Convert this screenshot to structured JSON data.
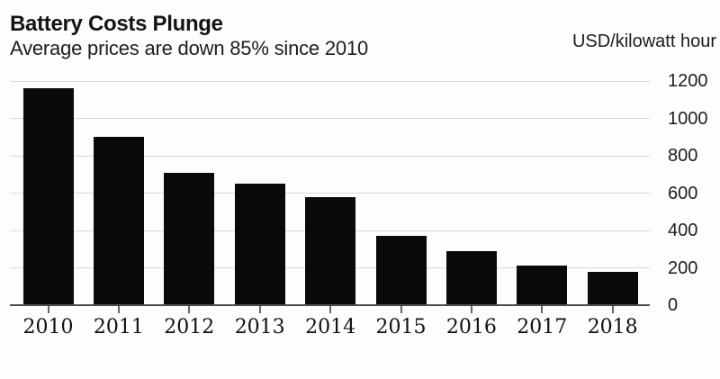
{
  "header": {
    "title": "Battery Costs Plunge",
    "subtitle": "Average prices are down 85% since 2010",
    "unit_label": "USD/kilowatt hour"
  },
  "chart_data": {
    "type": "bar",
    "title": "Battery Costs Plunge",
    "subtitle": "Average prices are down 85% since 2010",
    "ylabel": "USD/kilowatt hour",
    "xlabel": "",
    "categories": [
      "2010",
      "2011",
      "2012",
      "2013",
      "2014",
      "2015",
      "2016",
      "2017",
      "2018"
    ],
    "values": [
      1160,
      899,
      707,
      650,
      577,
      373,
      288,
      214,
      176
    ],
    "ylim": [
      0,
      1200
    ],
    "yticks": [
      0,
      200,
      400,
      600,
      800,
      1000,
      1200
    ],
    "grid": true,
    "legend_position": "none",
    "axis_side": "right",
    "bar_color": "#0a0a0a"
  },
  "colors": {
    "background": "#fdfdfd",
    "bar": "#0a0a0a",
    "gridline": "#d9d9d9",
    "baseline": "#4d4d4d",
    "text": "#1a1a1a"
  }
}
